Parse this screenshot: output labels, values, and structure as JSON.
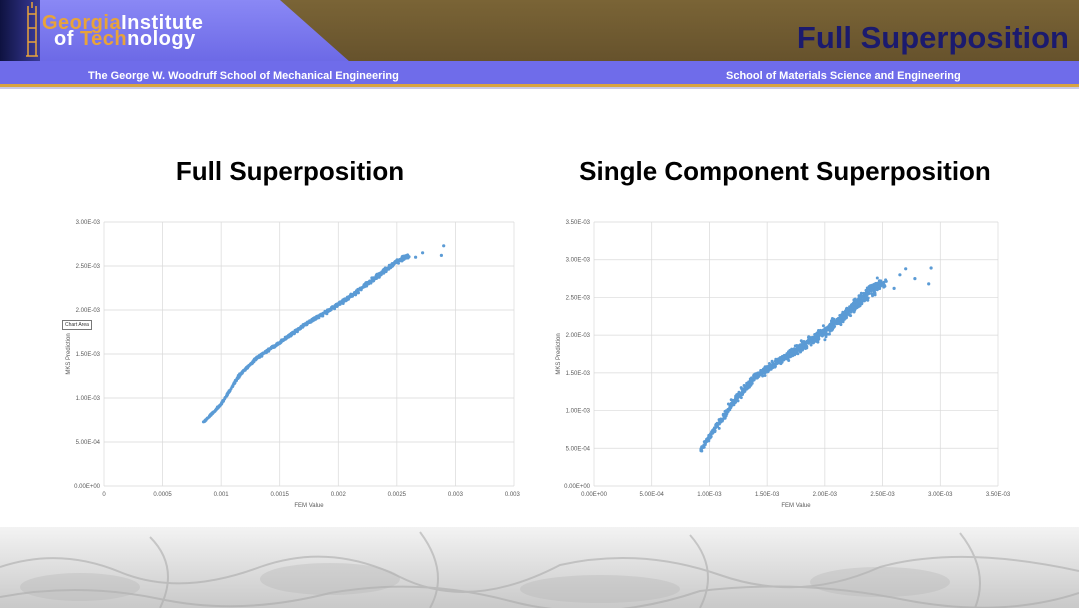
{
  "header": {
    "logo_line1_accent": "Georgia",
    "logo_line1_rest": "Institute",
    "logo_line2_prefix": "of",
    "logo_line2_accent": "Tech",
    "logo_line2_rest": "nology",
    "title": "Full Superposition",
    "dept_left": "The George W. Woodruff School of Mechanical Engineering",
    "dept_right": "School of Materials Science and Engineering"
  },
  "colors": {
    "header_purple": "#7a78ef",
    "header_olive": "#6f5b32",
    "title_navy": "#1b1a6e",
    "gold": "#d9a441",
    "point": "#5b9bd5"
  },
  "chart_data": [
    {
      "type": "scatter",
      "title": "Full Superposition",
      "xlabel": "FEM Value",
      "ylabel": "MKS Prediction",
      "xlim": [
        0,
        0.0035
      ],
      "ylim": [
        0,
        0.003
      ],
      "xticks": [
        "0",
        "0.0005",
        "0.001",
        "0.0015",
        "0.002",
        "0.0025",
        "0.003",
        "0.0035"
      ],
      "yticks": [
        "0.00E+00",
        "5.00E-04",
        "1.00E-03",
        "1.50E-03",
        "2.00E-03",
        "2.50E-03",
        "3.00E-03"
      ],
      "grid": true,
      "tooltip": "Chart Area",
      "trend": [
        [
          0.00085,
          0.00072
        ],
        [
          0.001,
          0.00093
        ],
        [
          0.00115,
          0.00125
        ],
        [
          0.0013,
          0.00145
        ],
        [
          0.0015,
          0.00163
        ],
        [
          0.0017,
          0.00182
        ],
        [
          0.0019,
          0.00198
        ],
        [
          0.0021,
          0.00215
        ],
        [
          0.0023,
          0.00235
        ],
        [
          0.0025,
          0.00255
        ],
        [
          0.0026,
          0.00262
        ]
      ],
      "outliers": [
        [
          0.0029,
          0.00273
        ],
        [
          0.00288,
          0.00262
        ],
        [
          0.00272,
          0.00265
        ],
        [
          0.00266,
          0.0026
        ]
      ]
    },
    {
      "type": "scatter",
      "title": "Single Component Superposition",
      "xlabel": "FEM Value",
      "ylabel": "MKS Prediction",
      "xlim": [
        0,
        0.0035
      ],
      "ylim": [
        0,
        0.0035
      ],
      "xticks": [
        "0.00E+00",
        "5.00E-04",
        "1.00E-03",
        "1.50E-03",
        "2.00E-03",
        "2.50E-03",
        "3.00E-03",
        "3.50E-03"
      ],
      "yticks": [
        "0.00E+00",
        "5.00E-04",
        "1.00E-03",
        "1.50E-03",
        "2.00E-03",
        "2.50E-03",
        "3.00E-03",
        "3.50E-03"
      ],
      "grid": true,
      "trend": [
        [
          0.00092,
          0.00045
        ],
        [
          0.001,
          0.00065
        ],
        [
          0.0012,
          0.0011
        ],
        [
          0.0014,
          0.00145
        ],
        [
          0.0016,
          0.00165
        ],
        [
          0.0018,
          0.00185
        ],
        [
          0.002,
          0.00205
        ],
        [
          0.0022,
          0.0023
        ],
        [
          0.0024,
          0.0026
        ],
        [
          0.0025,
          0.0027
        ]
      ],
      "outliers": [
        [
          0.00292,
          0.00289
        ],
        [
          0.0029,
          0.00268
        ],
        [
          0.0027,
          0.00288
        ],
        [
          0.00278,
          0.00275
        ],
        [
          0.00265,
          0.0028
        ],
        [
          0.0026,
          0.00262
        ]
      ]
    }
  ]
}
